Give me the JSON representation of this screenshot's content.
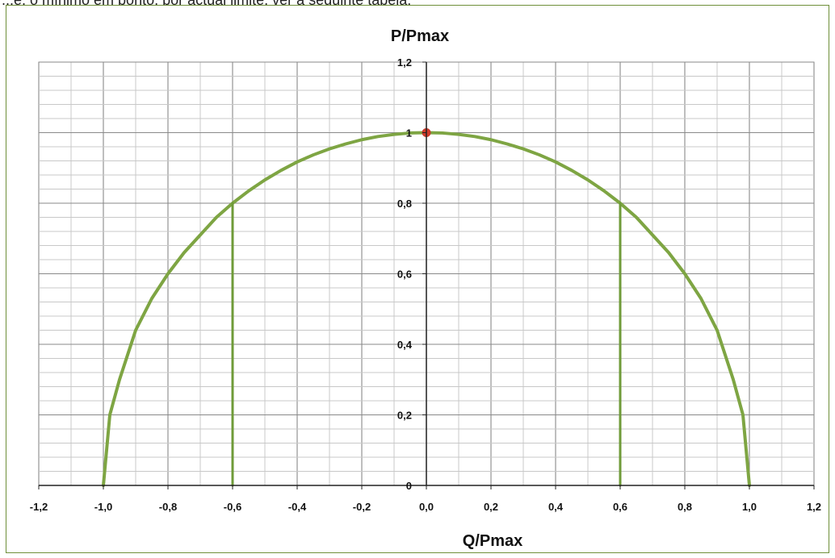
{
  "page_text": {
    "top_line": "...e, o mínimo em ponto, por actual limite, ver a seguinte tabela:"
  },
  "chart_data": {
    "type": "line",
    "title": "P/Pmax",
    "xlabel": "Q/Pmax",
    "ylabel": "",
    "xlim": [
      -1.2,
      1.2
    ],
    "ylim": [
      0,
      1.2
    ],
    "x_ticks": [
      "-1,2",
      "-1,0",
      "-0,8",
      "-0,6",
      "-0,4",
      "-0,2",
      "0,0",
      "0,2",
      "0,4",
      "0,6",
      "0,8",
      "1,0",
      "1,2"
    ],
    "x_tick_values": [
      -1.2,
      -1.0,
      -0.8,
      -0.6,
      -0.4,
      -0.2,
      0.0,
      0.2,
      0.4,
      0.6,
      0.8,
      1.0,
      1.2
    ],
    "y_ticks": [
      "0",
      "0,2",
      "0,4",
      "0,6",
      "0,8",
      "1",
      "1,2"
    ],
    "y_tick_values": [
      0,
      0.2,
      0.4,
      0.6,
      0.8,
      1.0,
      1.2
    ],
    "grid": true,
    "series": [
      {
        "type": "line",
        "color": "#7ea543",
        "points": [
          [
            -1.0,
            0.0
          ],
          [
            -0.98,
            0.2
          ],
          [
            -0.95,
            0.3
          ],
          [
            -0.9,
            0.44
          ],
          [
            -0.85,
            0.53
          ],
          [
            -0.8,
            0.6
          ],
          [
            -0.75,
            0.66
          ],
          [
            -0.7,
            0.71
          ],
          [
            -0.65,
            0.76
          ],
          [
            -0.6,
            0.8
          ],
          [
            -0.55,
            0.835
          ],
          [
            -0.5,
            0.866
          ],
          [
            -0.45,
            0.893
          ],
          [
            -0.4,
            0.917
          ],
          [
            -0.35,
            0.937
          ],
          [
            -0.3,
            0.954
          ],
          [
            -0.25,
            0.968
          ],
          [
            -0.2,
            0.98
          ],
          [
            -0.15,
            0.989
          ],
          [
            -0.1,
            0.995
          ],
          [
            -0.05,
            0.999
          ],
          [
            0.0,
            1.0
          ],
          [
            0.05,
            0.999
          ],
          [
            0.1,
            0.995
          ],
          [
            0.15,
            0.989
          ],
          [
            0.2,
            0.98
          ],
          [
            0.25,
            0.968
          ],
          [
            0.3,
            0.954
          ],
          [
            0.35,
            0.937
          ],
          [
            0.4,
            0.917
          ],
          [
            0.45,
            0.893
          ],
          [
            0.5,
            0.866
          ],
          [
            0.55,
            0.835
          ],
          [
            0.6,
            0.8
          ],
          [
            0.65,
            0.76
          ],
          [
            0.7,
            0.71
          ],
          [
            0.75,
            0.66
          ],
          [
            0.8,
            0.6
          ],
          [
            0.85,
            0.53
          ],
          [
            0.9,
            0.44
          ],
          [
            0.95,
            0.3
          ],
          [
            0.98,
            0.2
          ],
          [
            1.0,
            0.0
          ]
        ]
      },
      {
        "type": "line",
        "color": "#6f9b39",
        "points": [
          [
            -0.6,
            0.0
          ],
          [
            -0.6,
            0.8
          ]
        ]
      },
      {
        "type": "line",
        "color": "#6f9b39",
        "points": [
          [
            0.6,
            0.0
          ],
          [
            0.6,
            0.8
          ]
        ]
      }
    ],
    "marker": {
      "x": 0.0,
      "y": 1.0,
      "fill": "#d23b2b",
      "stroke": "#c23a2a"
    }
  }
}
